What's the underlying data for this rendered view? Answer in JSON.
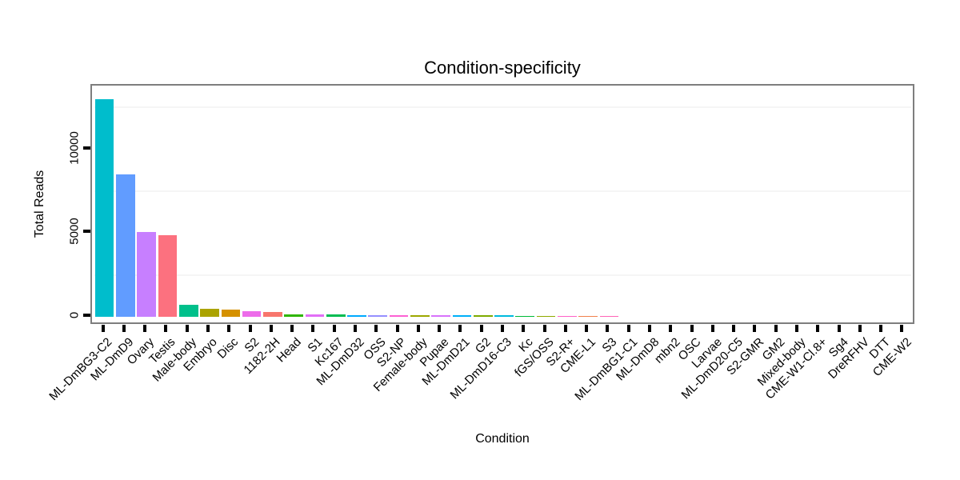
{
  "title": "Condition-specificity",
  "chart_data": {
    "type": "bar",
    "title": "Condition-specificity",
    "xlabel": "Condition",
    "ylabel": "Total Reads",
    "ylim": [
      0,
      13670
    ],
    "yticks": [
      0,
      5000,
      10000
    ],
    "ytick_labels": [
      "0",
      "5000",
      "10000"
    ],
    "minor_gridlines": [
      2500,
      7500,
      12500
    ],
    "grid": "minor-horizontal-only",
    "legend": "none",
    "x_label_rotation_deg": 45,
    "panel_border_color": "#7E7E7E",
    "gridline_color": "#F5F5F5",
    "tick_color": "#000000",
    "background_color": "#FFFFFF",
    "categories": [
      "ML-DmBG3-C2",
      "ML-DmD9",
      "Ovary",
      "Testis",
      "Male-body",
      "Embryo",
      "Disc",
      "S2",
      "1182-2H",
      "Head",
      "S1",
      "Kc167",
      "ML-DmD32",
      "OSS",
      "S2-NP",
      "Female-body",
      "Pupae",
      "ML-DmD21",
      "G2",
      "ML-DmD16-C3",
      "Kc",
      "fGS/OSS",
      "S2-R+",
      "CME-L1",
      "S3",
      "ML-DmBG1-C1",
      "ML-DmD8",
      "mbn2",
      "OSC",
      "Larvae",
      "ML-DmD20-C5",
      "S2-GMR",
      "GM2",
      "Mixed-body",
      "CME-W1-Cl.8+",
      "Sg4",
      "DreRFHV",
      "DTT",
      "CME-W2"
    ],
    "values": [
      13000,
      8500,
      5050,
      4850,
      730,
      500,
      450,
      330,
      290,
      160,
      135,
      125,
      110,
      105,
      100,
      95,
      90,
      85,
      80,
      75,
      70,
      65,
      60,
      55,
      50,
      20,
      15,
      12,
      10,
      8,
      6,
      5,
      4,
      3,
      2,
      2,
      1,
      1,
      0
    ],
    "bar_colors": [
      "#00BDCC",
      "#619CFF",
      "#C77FFF",
      "#FC717F",
      "#00C08B",
      "#ABA300",
      "#D59100",
      "#ED6CEA",
      "#F8766D",
      "#2FB600",
      "#E26EF7",
      "#00BC51",
      "#00A9FF",
      "#9590FF",
      "#FD61D3",
      "#9CA700",
      "#D873FB",
      "#00AFF9",
      "#7EAB00",
      "#00BADE",
      "#00BA38",
      "#8FA900",
      "#FF61C7",
      "#F1814D",
      "#FF65B6",
      "#00BFC0",
      "#4C9BFF",
      "#00C19B",
      "#8894FF",
      "#00BD64",
      "#00B3F2",
      "#F863DF",
      "#57AE00",
      "#00C1AE",
      "#EA8630",
      "#FF689D",
      "#C49A00",
      "#B89E00",
      "#DC8D00"
    ]
  }
}
